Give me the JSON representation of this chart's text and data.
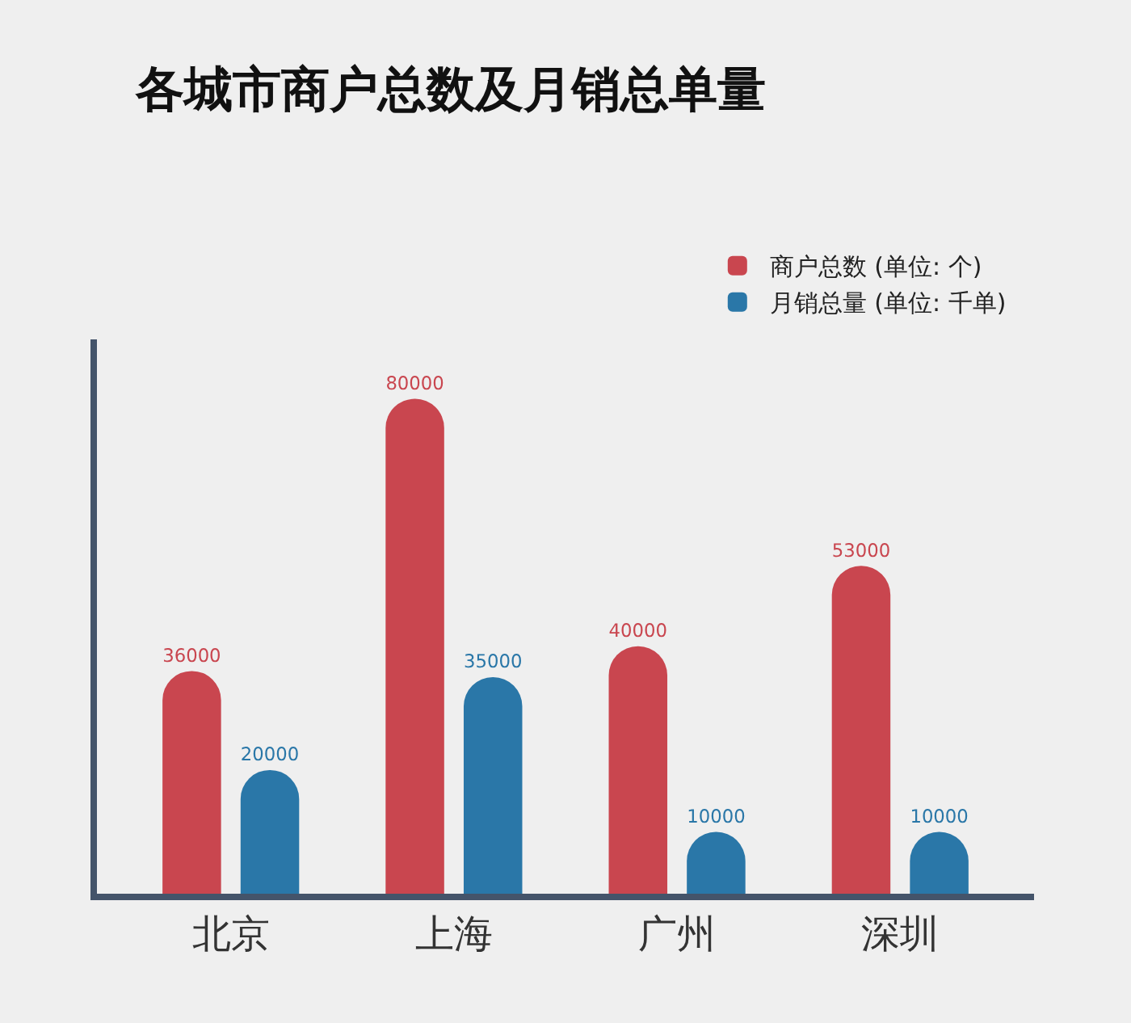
{
  "chart_data": {
    "type": "bar",
    "title": "各城市商户总数及月销总单量",
    "categories": [
      "北京",
      "上海",
      "广州",
      "深圳"
    ],
    "series": [
      {
        "name": "商户总数 (单位: 个)",
        "color": "#c9464f",
        "values": [
          36000,
          80000,
          40000,
          53000
        ]
      },
      {
        "name": "月销总量 (单位: 千单)",
        "color": "#2a77a8",
        "values": [
          20000,
          35000,
          10000,
          10000
        ]
      }
    ],
    "data_labels": true,
    "grid": false,
    "legend": "top right",
    "tick_labels": "x"
  }
}
